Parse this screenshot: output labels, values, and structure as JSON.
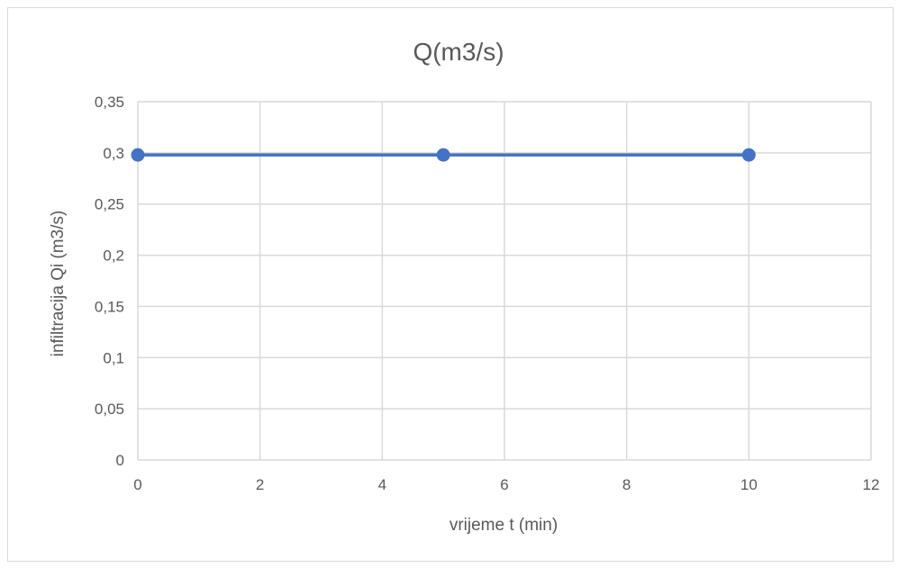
{
  "chart_data": {
    "type": "scatter",
    "title": "Q(m3/s)",
    "xlabel": "vrijeme t (min)",
    "ylabel": "infiltracija Qi (m3/s)",
    "xlim": [
      0,
      12
    ],
    "ylim": [
      0,
      0.35
    ],
    "x_ticks": [
      0,
      2,
      4,
      6,
      8,
      10,
      12
    ],
    "x_tick_labels": [
      "0",
      "2",
      "4",
      "6",
      "8",
      "10",
      "12"
    ],
    "y_ticks": [
      0,
      0.05,
      0.1,
      0.15,
      0.2,
      0.25,
      0.3,
      0.35
    ],
    "y_tick_labels": [
      "0",
      "0,05",
      "0,1",
      "0,15",
      "0,2",
      "0,25",
      "0,3",
      "0,35"
    ],
    "grid": true,
    "legend": "none",
    "series": [
      {
        "x": [
          0,
          5,
          10
        ],
        "y": [
          0.298,
          0.298,
          0.298
        ],
        "color": "#4472c4",
        "marker": "circle",
        "line": true
      }
    ]
  }
}
